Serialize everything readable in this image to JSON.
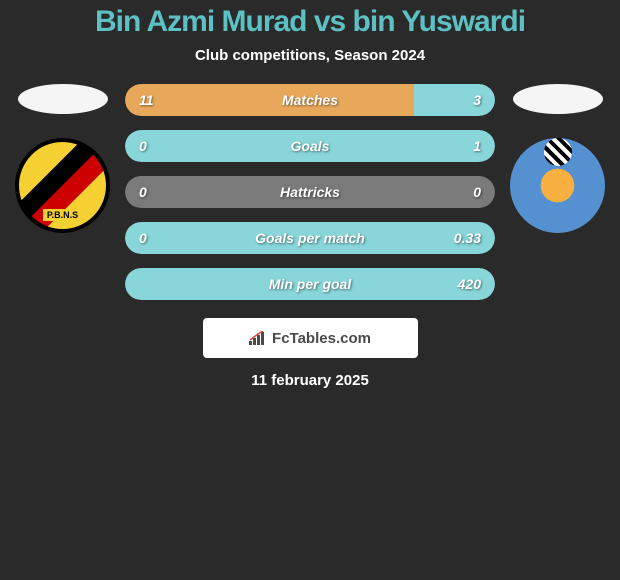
{
  "header": {
    "title": "Bin Azmi Murad vs bin Yuswardi",
    "subtitle": "Club competitions, Season 2024",
    "title_color": "#5dc1c4",
    "subtitle_color": "#ffffff"
  },
  "players": {
    "left": {
      "club_code": "P.B.N.S",
      "logo_colors": [
        "#f5d033",
        "#000000",
        "#cc0000"
      ]
    },
    "right": {
      "logo_colors": [
        "#5590d0",
        "#f8b040"
      ]
    }
  },
  "stats": [
    {
      "label": "Matches",
      "left_value": "11",
      "right_value": "3",
      "left_pct": 78,
      "right_pct": 22
    },
    {
      "label": "Goals",
      "left_value": "0",
      "right_value": "1",
      "left_pct": 0,
      "right_pct": 100
    },
    {
      "label": "Hattricks",
      "left_value": "0",
      "right_value": "0",
      "left_pct": 0,
      "right_pct": 0
    },
    {
      "label": "Goals per match",
      "left_value": "0",
      "right_value": "0.33",
      "left_pct": 0,
      "right_pct": 100
    },
    {
      "label": "Min per goal",
      "left_value": "",
      "right_value": "420",
      "left_pct": 0,
      "right_pct": 100
    }
  ],
  "colors": {
    "background": "#2a2a2a",
    "left_fill": "#e8a85c",
    "right_fill": "#88d6d9",
    "neutral_fill": "#7a7a7a",
    "text": "#ffffff"
  },
  "footer": {
    "site_name": "FcTables.com",
    "date": "11 february 2025"
  }
}
